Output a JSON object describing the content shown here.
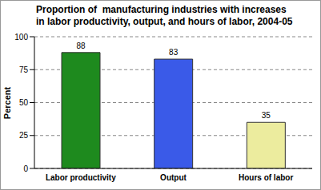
{
  "chart_data": {
    "type": "bar",
    "title": "Proportion of  manufacturing industries with increases\nin labor productivity, output, and hours of labor, 2004-05",
    "y_label": "Percent",
    "categories": [
      "Labor productivity",
      "Output",
      "Hours of labor"
    ],
    "values": [
      88,
      83,
      35
    ],
    "colors": [
      "#1e8a1e",
      "#3a5ae8",
      "#ecec9e"
    ],
    "ylim": [
      0,
      100
    ],
    "yticks": [
      0,
      25,
      50,
      75,
      100
    ],
    "grid": true,
    "data_labels": true
  }
}
